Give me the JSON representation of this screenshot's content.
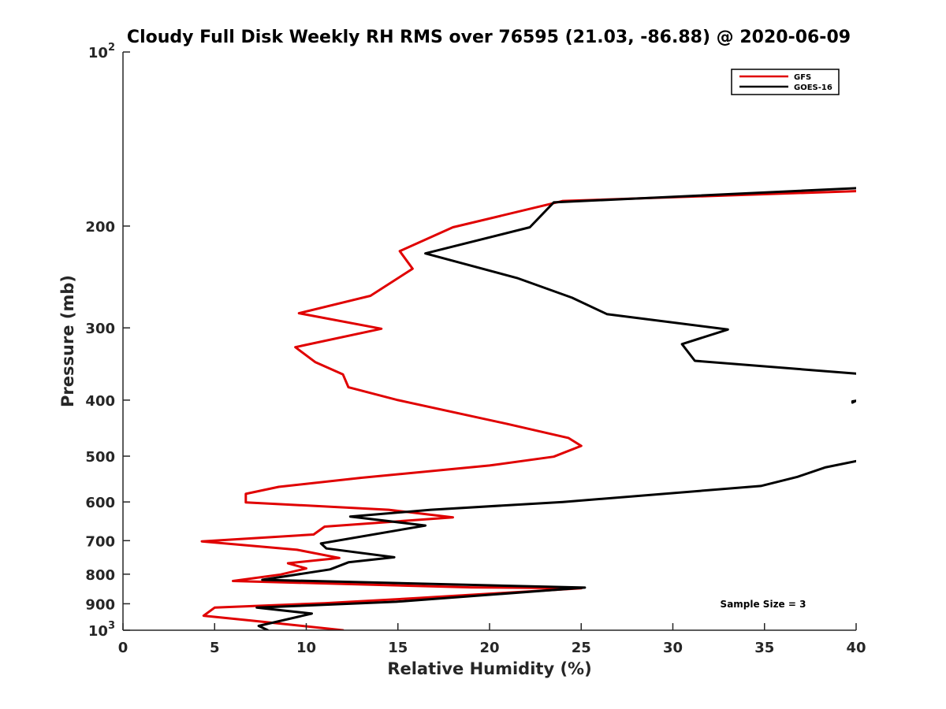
{
  "chart_data": {
    "type": "line",
    "title": "Cloudy Full Disk Weekly RH RMS over 76595 (21.03, -86.88) @ 2020-06-09",
    "xlabel": "Relative Humidity (%)",
    "ylabel": "Pressure (mb)",
    "xlim": [
      0,
      40
    ],
    "ylim": [
      100,
      1000
    ],
    "yscale": "log",
    "y_reversed": true,
    "xticks": [
      0,
      5,
      10,
      15,
      20,
      25,
      30,
      35,
      40
    ],
    "xtick_labels": [
      "0",
      "5",
      "10",
      "15",
      "20",
      "25",
      "30",
      "35",
      "40"
    ],
    "yticks": [
      {
        "value": 100,
        "base": "10",
        "exp": "2"
      },
      {
        "value": 200,
        "base": "200",
        "exp": ""
      },
      {
        "value": 300,
        "base": "300",
        "exp": ""
      },
      {
        "value": 400,
        "base": "400",
        "exp": ""
      },
      {
        "value": 500,
        "base": "500",
        "exp": ""
      },
      {
        "value": 600,
        "base": "600",
        "exp": ""
      },
      {
        "value": 700,
        "base": "700",
        "exp": ""
      },
      {
        "value": 800,
        "base": "800",
        "exp": ""
      },
      {
        "value": 900,
        "base": "900",
        "exp": ""
      },
      {
        "value": 1000,
        "base": "10",
        "exp": "3"
      }
    ],
    "legend": {
      "position": "top-right"
    },
    "annotation": "Sample Size = 3",
    "series": [
      {
        "name": "GFS",
        "color": "#e00000",
        "segments": [
          [
            [
              40,
              174
            ],
            [
              24.0,
              181
            ],
            [
              18.0,
              201
            ],
            [
              15.1,
              221
            ],
            [
              15.8,
              237
            ],
            [
              13.5,
              264
            ],
            [
              9.6,
              283
            ],
            [
              14.1,
              301
            ],
            [
              9.4,
              324
            ],
            [
              10.5,
              344
            ],
            [
              12.0,
              361
            ],
            [
              12.3,
              380
            ],
            [
              15.0,
              400
            ],
            [
              21.0,
              440
            ],
            [
              24.3,
              465
            ],
            [
              25.0,
              480
            ],
            [
              23.5,
              501
            ],
            [
              20.0,
              519
            ],
            [
              13.0,
              545
            ],
            [
              8.5,
              565
            ],
            [
              6.7,
              581
            ],
            [
              6.7,
              601
            ],
            [
              14.5,
              619
            ],
            [
              18.0,
              638
            ],
            [
              11.0,
              662
            ],
            [
              10.4,
              683
            ],
            [
              4.3,
              702
            ],
            [
              9.5,
              726
            ],
            [
              11.8,
              750
            ],
            [
              9.0,
              766
            ],
            [
              10.0,
              782
            ],
            [
              8.6,
              801
            ],
            [
              6.0,
              822
            ],
            [
              19.0,
              843
            ],
            [
              25.0,
              846
            ],
            [
              16.0,
              880
            ],
            [
              11.0,
              898
            ],
            [
              5.0,
              914
            ],
            [
              4.4,
              944
            ],
            [
              7.0,
              962
            ],
            [
              12.0,
              1000
            ]
          ]
        ]
      },
      {
        "name": "GOES-16",
        "color": "#000000",
        "segments": [
          [
            [
              40,
              172
            ],
            [
              23.5,
              182
            ],
            [
              22.2,
              201
            ],
            [
              16.5,
              223
            ],
            [
              21.5,
              246
            ],
            [
              24.5,
              266
            ],
            [
              26.4,
              284
            ],
            [
              33.0,
              302
            ],
            [
              30.5,
              320
            ],
            [
              31.2,
              342
            ],
            [
              40,
              360
            ]
          ],
          [
            [
              39.8,
              402
            ],
            [
              40,
              401
            ],
            [
              39.8,
              404
            ]
          ],
          [
            [
              40,
              510
            ],
            [
              38.3,
              523
            ],
            [
              36.8,
              543
            ],
            [
              34.8,
              563
            ],
            [
              24.0,
              600
            ],
            [
              16.8,
              619
            ],
            [
              12.4,
              636
            ],
            [
              16.5,
              659
            ],
            [
              10.8,
              708
            ],
            [
              11.1,
              722
            ],
            [
              14.8,
              748
            ],
            [
              12.3,
              763
            ],
            [
              11.3,
              785
            ],
            [
              7.6,
              818
            ],
            [
              25.2,
              844
            ],
            [
              14.9,
              893
            ],
            [
              7.3,
              914
            ],
            [
              10.3,
              936
            ],
            [
              7.4,
              983
            ],
            [
              7.9,
              1000
            ]
          ]
        ]
      }
    ]
  }
}
